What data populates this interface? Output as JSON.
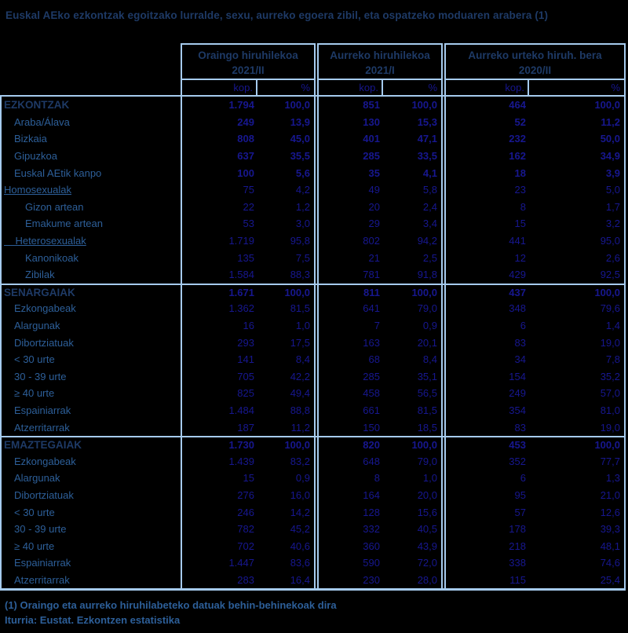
{
  "title": "Euskal AEko ezkontzak egoitzako lurralde, sexu, aurreko egoera zibil, eta ospatzeko moduaren arabera (1)",
  "colors": {
    "background": "#000000",
    "grid_border": "#A6CBEE",
    "heading_navy": "#1E3A66",
    "label_blue": "#2D5F99",
    "value_indigo": "#17178F"
  },
  "columns": {
    "groups": [
      {
        "label": "Oraingo hiruhilekoa",
        "period": "2021/II"
      },
      {
        "label": "Aurreko hiruhilekoa",
        "period": "2021/I"
      },
      {
        "label": "Aurreko urteko hiruh. bera",
        "period": "2020/II"
      }
    ],
    "sub_count": "kop.",
    "sub_percent": "%"
  },
  "chart_data": {
    "type": "table",
    "title": "Euskal AEko ezkontzak egoitzako lurralde, sexu, aurreko egoera zibil, eta ospatzeko moduaren arabera (1)",
    "column_groups": [
      "Oraingo hiruhilekoa 2021/II",
      "Aurreko hiruhilekoa 2021/I",
      "Aurreko urteko hiruh. bera 2020/II"
    ],
    "subcolumns": [
      "kop.",
      "%"
    ]
  },
  "table": {
    "rows": [
      {
        "label": "EZKONTZAK",
        "indent": 0,
        "style": "section",
        "values": [
          "1.794",
          "100,0",
          "851",
          "100,0",
          "464",
          "100,0"
        ]
      },
      {
        "label": "Araba/Álava",
        "indent": 1,
        "style": "boldvals",
        "values": [
          "249",
          "13,9",
          "130",
          "15,3",
          "52",
          "11,2"
        ]
      },
      {
        "label": "Bizkaia",
        "indent": 1,
        "style": "boldvals",
        "values": [
          "808",
          "45,0",
          "401",
          "47,1",
          "232",
          "50,0"
        ]
      },
      {
        "label": "Gipuzkoa",
        "indent": 1,
        "style": "boldvals",
        "values": [
          "637",
          "35,5",
          "285",
          "33,5",
          "162",
          "34,9"
        ]
      },
      {
        "label": "Euskal AEtik kanpo",
        "indent": 1,
        "style": "boldvals",
        "values": [
          "100",
          "5,6",
          "35",
          "4,1",
          "18",
          "3,9"
        ]
      },
      {
        "label": "Homosexualak",
        "indent": 0,
        "style": "normal",
        "underline": true,
        "values": [
          "75",
          "4,2",
          "49",
          "5,8",
          "23",
          "5,0"
        ]
      },
      {
        "label": "Gizon artean",
        "indent": 2,
        "style": "normal",
        "values": [
          "22",
          "1,2",
          "20",
          "2,4",
          "8",
          "1,7"
        ]
      },
      {
        "label": "Emakume artean",
        "indent": 2,
        "style": "normal",
        "values": [
          "53",
          "3,0",
          "29",
          "3,4",
          "15",
          "3,2"
        ]
      },
      {
        "label": "Heterosexualak",
        "indent": 0,
        "style": "normal",
        "underline": true,
        "lead_spaces": 4,
        "values": [
          "1.719",
          "95,8",
          "802",
          "94,2",
          "441",
          "95,0"
        ]
      },
      {
        "label": "Kanonikoak",
        "indent": 2,
        "style": "normal",
        "values": [
          "135",
          "7,5",
          "21",
          "2,5",
          "12",
          "2,6"
        ]
      },
      {
        "label": "Zibilak",
        "indent": 2,
        "style": "normal",
        "values": [
          "1.584",
          "88,3",
          "781",
          "91,8",
          "429",
          "92,5"
        ]
      },
      {
        "label": "SENARGAIAK",
        "indent": 0,
        "style": "section",
        "section_break": true,
        "values": [
          "1.671",
          "100,0",
          "811",
          "100,0",
          "437",
          "100,0"
        ]
      },
      {
        "label": "Ezkongabeak",
        "indent": 1,
        "style": "normal",
        "values": [
          "1.362",
          "81,5",
          "641",
          "79,0",
          "348",
          "79,6"
        ]
      },
      {
        "label": "Alargunak",
        "indent": 1,
        "style": "normal",
        "values": [
          "16",
          "1,0",
          "7",
          "0,9",
          "6",
          "1,4"
        ]
      },
      {
        "label": "Dibortziatuak",
        "indent": 1,
        "style": "normal",
        "values": [
          "293",
          "17,5",
          "163",
          "20,1",
          "83",
          "19,0"
        ]
      },
      {
        "label": "< 30 urte",
        "indent": 1,
        "style": "normal",
        "values": [
          "141",
          "8,4",
          "68",
          "8,4",
          "34",
          "7,8"
        ]
      },
      {
        "label": "30 - 39 urte",
        "indent": 1,
        "style": "normal",
        "values": [
          "705",
          "42,2",
          "285",
          "35,1",
          "154",
          "35,2"
        ]
      },
      {
        "label": "≥ 40 urte",
        "indent": 1,
        "style": "normal",
        "values": [
          "825",
          "49,4",
          "458",
          "56,5",
          "249",
          "57,0"
        ]
      },
      {
        "label": "Espainiarrak",
        "indent": 1,
        "style": "normal",
        "values": [
          "1.484",
          "88,8",
          "661",
          "81,5",
          "354",
          "81,0"
        ]
      },
      {
        "label": "Atzerritarrak",
        "indent": 1,
        "style": "normal",
        "values": [
          "187",
          "11,2",
          "150",
          "18,5",
          "83",
          "19,0"
        ]
      },
      {
        "label": "EMAZTEGAIAK",
        "indent": 0,
        "style": "section",
        "section_break": true,
        "values": [
          "1.730",
          "100,0",
          "820",
          "100,0",
          "453",
          "100,0"
        ]
      },
      {
        "label": "Ezkongabeak",
        "indent": 1,
        "style": "normal",
        "values": [
          "1.439",
          "83,2",
          "648",
          "79,0",
          "352",
          "77,7"
        ]
      },
      {
        "label": "Alargunak",
        "indent": 1,
        "style": "normal",
        "values": [
          "15",
          "0,9",
          "8",
          "1,0",
          "6",
          "1,3"
        ]
      },
      {
        "label": "Dibortziatuak",
        "indent": 1,
        "style": "normal",
        "values": [
          "276",
          "16,0",
          "164",
          "20,0",
          "95",
          "21,0"
        ]
      },
      {
        "label": "< 30 urte",
        "indent": 1,
        "style": "normal",
        "values": [
          "246",
          "14,2",
          "128",
          "15,6",
          "57",
          "12,6"
        ]
      },
      {
        "label": "30 - 39 urte",
        "indent": 1,
        "style": "normal",
        "values": [
          "782",
          "45,2",
          "332",
          "40,5",
          "178",
          "39,3"
        ]
      },
      {
        "label": "≥ 40 urte",
        "indent": 1,
        "style": "normal",
        "values": [
          "702",
          "40,6",
          "360",
          "43,9",
          "218",
          "48,1"
        ]
      },
      {
        "label": "Espainiarrak",
        "indent": 1,
        "style": "normal",
        "values": [
          "1.447",
          "83,6",
          "590",
          "72,0",
          "338",
          "74,6"
        ]
      },
      {
        "label": "Atzerritarrak",
        "indent": 1,
        "style": "normal",
        "values": [
          "283",
          "16,4",
          "230",
          "28,0",
          "115",
          "25,4"
        ]
      }
    ]
  },
  "footer": {
    "note": "(1) Oraingo eta aurreko hiruhilabeteko datuak behin-behinekoak dira",
    "source": "Iturria: Eustat. Ezkontzen estatistika"
  }
}
